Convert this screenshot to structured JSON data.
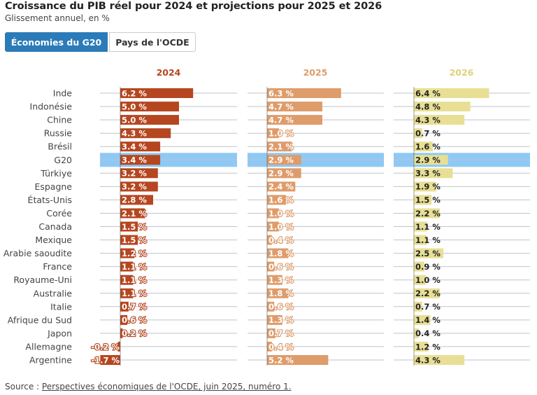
{
  "header": {
    "title": "Croissance du PIB réel pour 2024 et projections pour 2025 et 2026",
    "subtitle": "Glissement annuel, en %"
  },
  "tabs": [
    {
      "label": "Économies du G20",
      "active": true
    },
    {
      "label": "Pays de l'OCDE",
      "active": false
    }
  ],
  "source": {
    "prefix": "Source : ",
    "link": "Perspectives économiques de l'OCDE, juin 2025, numéro 1."
  },
  "colors": {
    "2024": "#b5461f",
    "2025": "#de9c6b",
    "2026": "#e8df94",
    "highlight": "#8ec9f5",
    "accent": "#2b7bb9"
  },
  "chart_data": {
    "type": "bar",
    "orientation": "horizontal",
    "categories": [
      "Inde",
      "Indonésie",
      "Chine",
      "Russie",
      "Brésil",
      "G20",
      "Türkiye",
      "Espagne",
      "États-Unis",
      "Corée",
      "Canada",
      "Mexique",
      "Arabie saoudite",
      "France",
      "Royaume-Uni",
      "Australie",
      "Italie",
      "Afrique du Sud",
      "Japon",
      "Allemagne",
      "Argentine"
    ],
    "highlighted_category": "G20",
    "unit": "%",
    "series": [
      {
        "name": "2024",
        "values": [
          6.2,
          5.0,
          5.0,
          4.3,
          3.4,
          3.4,
          3.2,
          3.2,
          2.8,
          2.1,
          1.5,
          1.5,
          1.2,
          1.1,
          1.1,
          1.1,
          0.7,
          0.6,
          0.2,
          -0.2,
          -1.7
        ],
        "labels": [
          "6.2 %",
          "5.0 %",
          "5.0 %",
          "4.3 %",
          "3.4 %",
          "3.4 %",
          "3.2 %",
          "3.2 %",
          "2.8 %",
          "2.1 %",
          "1.5 %",
          "1.5 %",
          "1.2 %",
          "1.1 %",
          "1.1 %",
          "1.1 %",
          "0.7 %",
          "0.6 %",
          "0.2 %",
          "-0.2 %",
          "-1.7 %"
        ]
      },
      {
        "name": "2025",
        "values": [
          6.3,
          4.7,
          4.7,
          1.0,
          2.1,
          2.9,
          2.9,
          2.4,
          1.6,
          1.0,
          1.0,
          0.4,
          1.8,
          0.6,
          1.3,
          1.8,
          0.6,
          1.3,
          0.7,
          0.4,
          5.2
        ],
        "labels": [
          "6.3 %",
          "4.7 %",
          "4.7 %",
          "1.0 %",
          "2.1 %",
          "2.9 %",
          "2.9 %",
          "2.4 %",
          "1.6 %",
          "1.0 %",
          "1.0 %",
          "0.4 %",
          "1.8 %",
          "0.6 %",
          "1.3 %",
          "1.8 %",
          "0.6 %",
          "1.3 %",
          "0.7 %",
          "0.4 %",
          "5.2 %"
        ]
      },
      {
        "name": "2026",
        "values": [
          6.4,
          4.8,
          4.3,
          0.7,
          1.6,
          2.9,
          3.3,
          1.9,
          1.5,
          2.2,
          1.1,
          1.1,
          2.5,
          0.9,
          1.0,
          2.2,
          0.7,
          1.4,
          0.4,
          1.2,
          4.3
        ],
        "labels": [
          "6.4 %",
          "4.8 %",
          "4.3 %",
          "0.7 %",
          "1.6 %",
          "2.9 %",
          "3.3 %",
          "1.9 %",
          "1.5 %",
          "2.2 %",
          "1.1 %",
          "1.1 %",
          "2.5 %",
          "0.9 %",
          "1.0 %",
          "2.2 %",
          "0.7 %",
          "1.4 %",
          "0.4 %",
          "1.2 %",
          "4.3 %"
        ]
      }
    ],
    "title": "",
    "xlabel": "",
    "ylabel": "",
    "grid": true,
    "legend": "column headers"
  }
}
